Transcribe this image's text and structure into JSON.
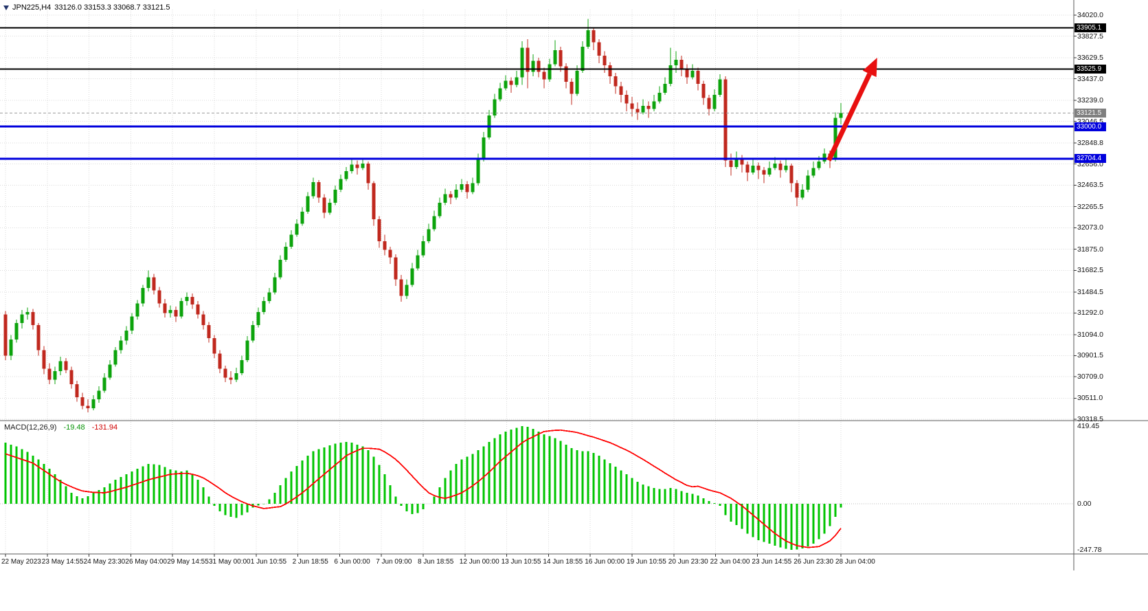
{
  "header": {
    "symbol_period": "JPN225,H4",
    "ohlc": "33126.0 33153.3 33068.7 33121.5"
  },
  "macd_panel": {
    "label": "MACD(12,26,9)",
    "macd_value": "-19.48",
    "signal_value": "-131.94",
    "axis": {
      "max": "419.45",
      "zero": "0.00",
      "min": "-247.78"
    }
  },
  "price_axis": {
    "ticks": [
      "34020.0",
      "33827.5",
      "33629.5",
      "33437.0",
      "33239.0",
      "33046.5",
      "32848.8",
      "32656.0",
      "32463.5",
      "32265.5",
      "32073.0",
      "31875.0",
      "31682.5",
      "31484.5",
      "31292.0",
      "31094.0",
      "30901.5",
      "30709.0",
      "30511.0",
      "30318.5"
    ],
    "tags": [
      {
        "value": "33905.1",
        "price": 33905.1,
        "bg": "#000000",
        "type": "resistance-upper"
      },
      {
        "value": "33525.9",
        "price": 33525.9,
        "bg": "#000000",
        "type": "resistance-lower"
      },
      {
        "value": "33121.5",
        "price": 33121.5,
        "bg": "#7f7f7f",
        "type": "current-price"
      },
      {
        "value": "33000.0",
        "price": 33000.0,
        "bg": "#0000dd",
        "type": "support-upper"
      },
      {
        "value": "32704.4",
        "price": 32704.4,
        "bg": "#0000dd",
        "type": "support-lower"
      }
    ]
  },
  "time_axis": {
    "labels": [
      "22 May 2023",
      "23 May 14:55",
      "24 May 23:30",
      "26 May 04:00",
      "29 May 14:55",
      "31 May 00:00",
      "1 Jun 10:55",
      "2 Jun 18:55",
      "6 Jun 00:00",
      "7 Jun 09:00",
      "8 Jun 18:55",
      "12 Jun 00:00",
      "13 Jun 10:55",
      "14 Jun 18:55",
      "16 Jun 00:00",
      "19 Jun 10:55",
      "20 Jun 23:30",
      "22 Jun 04:00",
      "23 Jun 14:55",
      "26 Jun 23:30",
      "28 Jun 04:00"
    ]
  },
  "chart_data": {
    "type": "candlestick+macd",
    "symbol": "JPN225",
    "timeframe": "H4",
    "title": "JPN225,H4 33126.0 33153.3 33068.7 33121.5",
    "price_range": [
      30318.5,
      34020.0
    ],
    "macd_range": [
      -247.78,
      419.45
    ],
    "current_price": 33121.5,
    "grid": true,
    "colors": {
      "up": "#0ca30c",
      "down": "#c0281e",
      "macd": "#00c400",
      "signal": "#ff0000",
      "grid": "#d9d9d9",
      "arrow": "#e81010"
    },
    "hlines": [
      {
        "price": 33905.1,
        "color": "#000000",
        "width": 2
      },
      {
        "price": 33525.9,
        "color": "#000000",
        "width": 2
      },
      {
        "price": 33000.0,
        "color": "#0000dd",
        "width": 3
      },
      {
        "price": 32704.4,
        "color": "#0000dd",
        "width": 3
      }
    ],
    "arrow": {
      "from": {
        "index": 149.8,
        "price": 32690
      },
      "to": {
        "index": 158.6,
        "price": 33630
      },
      "note": "red-up-trend-arrow"
    },
    "candles": [
      [
        31280,
        31310,
        30860,
        30900
      ],
      [
        30900,
        31090,
        30860,
        31050
      ],
      [
        31050,
        31230,
        31020,
        31200
      ],
      [
        31200,
        31320,
        31150,
        31280
      ],
      [
        31280,
        31340,
        31230,
        31300
      ],
      [
        31300,
        31330,
        31140,
        31180
      ],
      [
        31180,
        31200,
        30900,
        30950
      ],
      [
        30950,
        30990,
        30730,
        30780
      ],
      [
        30780,
        30830,
        30640,
        30680
      ],
      [
        30680,
        30800,
        30640,
        30760
      ],
      [
        30760,
        30890,
        30720,
        30850
      ],
      [
        30850,
        30880,
        30740,
        30770
      ],
      [
        30770,
        30800,
        30600,
        30640
      ],
      [
        30640,
        30670,
        30480,
        30520
      ],
      [
        30520,
        30560,
        30410,
        30440
      ],
      [
        30440,
        30500,
        30380,
        30420
      ],
      [
        30420,
        30540,
        30400,
        30500
      ],
      [
        30500,
        30620,
        30470,
        30580
      ],
      [
        30580,
        30740,
        30560,
        30700
      ],
      [
        30700,
        30860,
        30680,
        30820
      ],
      [
        30820,
        30980,
        30800,
        30950
      ],
      [
        30950,
        31080,
        30920,
        31040
      ],
      [
        31040,
        31170,
        31000,
        31130
      ],
      [
        31130,
        31290,
        31100,
        31260
      ],
      [
        31260,
        31410,
        31230,
        31380
      ],
      [
        31380,
        31550,
        31350,
        31520
      ],
      [
        31520,
        31680,
        31490,
        31620
      ],
      [
        31620,
        31650,
        31460,
        31500
      ],
      [
        31500,
        31530,
        31340,
        31380
      ],
      [
        31380,
        31420,
        31250,
        31290
      ],
      [
        31290,
        31360,
        31250,
        31320
      ],
      [
        31320,
        31350,
        31210,
        31260
      ],
      [
        31260,
        31430,
        31240,
        31400
      ],
      [
        31400,
        31480,
        31360,
        31440
      ],
      [
        31440,
        31470,
        31330,
        31370
      ],
      [
        31370,
        31400,
        31240,
        31280
      ],
      [
        31280,
        31310,
        31140,
        31180
      ],
      [
        31180,
        31210,
        31020,
        31060
      ],
      [
        31060,
        31090,
        30880,
        30920
      ],
      [
        30920,
        30950,
        30740,
        30780
      ],
      [
        30780,
        30810,
        30660,
        30700
      ],
      [
        30700,
        30760,
        30640,
        30680
      ],
      [
        30680,
        30790,
        30660,
        30740
      ],
      [
        30740,
        30900,
        30720,
        30860
      ],
      [
        30860,
        31080,
        30840,
        31040
      ],
      [
        31040,
        31220,
        31020,
        31180
      ],
      [
        31180,
        31340,
        31160,
        31300
      ],
      [
        31300,
        31440,
        31280,
        31400
      ],
      [
        31400,
        31520,
        31380,
        31480
      ],
      [
        31480,
        31660,
        31460,
        31620
      ],
      [
        31620,
        31820,
        31600,
        31780
      ],
      [
        31780,
        31940,
        31760,
        31900
      ],
      [
        31900,
        32050,
        31880,
        32010
      ],
      [
        32010,
        32150,
        31990,
        32110
      ],
      [
        32110,
        32260,
        32090,
        32220
      ],
      [
        32220,
        32400,
        32200,
        32360
      ],
      [
        32360,
        32530,
        32340,
        32490
      ],
      [
        32490,
        32510,
        32300,
        32350
      ],
      [
        32350,
        32380,
        32160,
        32210
      ],
      [
        32210,
        32340,
        32190,
        32300
      ],
      [
        32300,
        32460,
        32280,
        32420
      ],
      [
        32420,
        32560,
        32400,
        32520
      ],
      [
        32520,
        32630,
        32500,
        32590
      ],
      [
        32590,
        32700,
        32570,
        32650
      ],
      [
        32650,
        32690,
        32560,
        32620
      ],
      [
        32620,
        32700,
        32600,
        32660
      ],
      [
        32660,
        32680,
        32420,
        32480
      ],
      [
        32480,
        32500,
        32090,
        32150
      ],
      [
        32150,
        32180,
        31890,
        31950
      ],
      [
        31950,
        32010,
        31820,
        31870
      ],
      [
        31870,
        31900,
        31740,
        31800
      ],
      [
        31800,
        31830,
        31540,
        31600
      ],
      [
        31600,
        31640,
        31395,
        31450
      ],
      [
        31450,
        31600,
        31420,
        31550
      ],
      [
        31550,
        31750,
        31530,
        31700
      ],
      [
        31700,
        31870,
        31680,
        31820
      ],
      [
        31820,
        32000,
        31800,
        31950
      ],
      [
        31950,
        32110,
        31930,
        32060
      ],
      [
        32060,
        32230,
        32040,
        32180
      ],
      [
        32180,
        32350,
        32160,
        32300
      ],
      [
        32300,
        32430,
        32280,
        32380
      ],
      [
        32380,
        32410,
        32290,
        32350
      ],
      [
        32350,
        32470,
        32330,
        32420
      ],
      [
        32420,
        32520,
        32400,
        32470
      ],
      [
        32470,
        32500,
        32340,
        32400
      ],
      [
        32400,
        32530,
        32380,
        32480
      ],
      [
        32480,
        32750,
        32460,
        32700
      ],
      [
        32700,
        32950,
        32680,
        32900
      ],
      [
        32900,
        33150,
        32880,
        33100
      ],
      [
        33100,
        33300,
        33080,
        33250
      ],
      [
        33250,
        33400,
        33230,
        33350
      ],
      [
        33350,
        33470,
        33330,
        33420
      ],
      [
        33420,
        33450,
        33310,
        33380
      ],
      [
        33380,
        33510,
        33360,
        33450
      ],
      [
        33450,
        33780,
        33380,
        33720
      ],
      [
        33720,
        33800,
        33350,
        33500
      ],
      [
        33500,
        33660,
        33460,
        33600
      ],
      [
        33600,
        33630,
        33450,
        33500
      ],
      [
        33500,
        33540,
        33350,
        33430
      ],
      [
        33430,
        33620,
        33410,
        33570
      ],
      [
        33570,
        33790,
        33550,
        33700
      ],
      [
        33700,
        33730,
        33500,
        33550
      ],
      [
        33550,
        33580,
        33350,
        33410
      ],
      [
        33410,
        33440,
        33200,
        33300
      ],
      [
        33300,
        33560,
        33280,
        33510
      ],
      [
        33510,
        33780,
        33490,
        33730
      ],
      [
        33730,
        33985,
        33710,
        33880
      ],
      [
        33880,
        33910,
        33700,
        33770
      ],
      [
        33770,
        33800,
        33580,
        33650
      ],
      [
        33650,
        33690,
        33490,
        33560
      ],
      [
        33560,
        33590,
        33390,
        33460
      ],
      [
        33460,
        33490,
        33300,
        33370
      ],
      [
        33370,
        33410,
        33220,
        33290
      ],
      [
        33290,
        33330,
        33140,
        33210
      ],
      [
        33210,
        33270,
        33090,
        33160
      ],
      [
        33160,
        33220,
        33060,
        33130
      ],
      [
        33130,
        33250,
        33110,
        33190
      ],
      [
        33190,
        33230,
        33080,
        33160
      ],
      [
        33160,
        33290,
        33140,
        33230
      ],
      [
        33230,
        33370,
        33210,
        33310
      ],
      [
        33310,
        33450,
        33290,
        33390
      ],
      [
        33390,
        33720,
        33370,
        33560
      ],
      [
        33560,
        33690,
        33490,
        33610
      ],
      [
        33610,
        33650,
        33460,
        33530
      ],
      [
        33530,
        33570,
        33390,
        33450
      ],
      [
        33450,
        33570,
        33430,
        33510
      ],
      [
        33510,
        33540,
        33330,
        33390
      ],
      [
        33390,
        33420,
        33200,
        33260
      ],
      [
        33260,
        33290,
        33100,
        33160
      ],
      [
        33160,
        33340,
        33140,
        33290
      ],
      [
        33290,
        33480,
        33270,
        33430
      ],
      [
        33430,
        33460,
        32630,
        32690
      ],
      [
        32690,
        32750,
        32550,
        32630
      ],
      [
        32630,
        32770,
        32610,
        32710
      ],
      [
        32710,
        32740,
        32580,
        32650
      ],
      [
        32650,
        32680,
        32500,
        32580
      ],
      [
        32580,
        32700,
        32560,
        32640
      ],
      [
        32640,
        32670,
        32520,
        32600
      ],
      [
        32600,
        32630,
        32480,
        32560
      ],
      [
        32560,
        32680,
        32540,
        32620
      ],
      [
        32620,
        32720,
        32600,
        32660
      ],
      [
        32660,
        32690,
        32530,
        32600
      ],
      [
        32600,
        32700,
        32580,
        32640
      ],
      [
        32640,
        32660,
        32400,
        32480
      ],
      [
        32480,
        32510,
        32270,
        32350
      ],
      [
        32350,
        32470,
        32330,
        32420
      ],
      [
        32420,
        32600,
        32400,
        32550
      ],
      [
        32550,
        32680,
        32530,
        32620
      ],
      [
        32620,
        32730,
        32600,
        32680
      ],
      [
        32680,
        32800,
        32660,
        32750
      ],
      [
        32750,
        32780,
        32620,
        32700
      ],
      [
        32700,
        33130,
        32680,
        33080
      ],
      [
        33080,
        33215,
        33020,
        33121.5
      ]
    ],
    "macd_histogram": [
      330,
      320,
      310,
      295,
      280,
      260,
      240,
      215,
      190,
      160,
      130,
      95,
      60,
      42,
      30,
      42,
      60,
      75,
      90,
      110,
      130,
      145,
      160,
      175,
      190,
      203,
      215,
      213,
      210,
      198,
      185,
      180,
      175,
      180,
      160,
      130,
      90,
      40,
      -10,
      -40,
      -60,
      -70,
      -75,
      -60,
      -45,
      -20,
      -8,
      -2,
      25,
      60,
      100,
      140,
      175,
      205,
      235,
      260,
      285,
      295,
      305,
      315,
      325,
      330,
      335,
      330,
      320,
      310,
      290,
      255,
      210,
      160,
      100,
      40,
      -10,
      -40,
      -55,
      -50,
      -30,
      0,
      40,
      90,
      140,
      180,
      215,
      240,
      255,
      270,
      290,
      310,
      335,
      355,
      375,
      390,
      400,
      410,
      419,
      415,
      405,
      390,
      375,
      365,
      355,
      340,
      320,
      300,
      290,
      285,
      285,
      275,
      260,
      240,
      220,
      200,
      180,
      160,
      140,
      120,
      105,
      95,
      85,
      80,
      80,
      85,
      80,
      70,
      60,
      55,
      45,
      30,
      15,
      5,
      -10,
      -60,
      -95,
      -115,
      -135,
      -160,
      -180,
      -195,
      -205,
      -215,
      -225,
      -235,
      -242,
      -247,
      -245,
      -240,
      -230,
      -215,
      -190,
      -160,
      -120,
      -70,
      -19.48
    ],
    "macd_signal": [
      270,
      260,
      250,
      240,
      230,
      220,
      200,
      180,
      160,
      140,
      120,
      105,
      92,
      80,
      70,
      66,
      62,
      61,
      60,
      66,
      74,
      82,
      90,
      100,
      110,
      120,
      130,
      138,
      145,
      152,
      160,
      162,
      164,
      165,
      160,
      152,
      140,
      122,
      102,
      82,
      60,
      42,
      26,
      12,
      0,
      -10,
      -18,
      -25,
      -22,
      -18,
      -15,
      0,
      18,
      38,
      60,
      84,
      110,
      135,
      160,
      185,
      210,
      235,
      260,
      275,
      288,
      300,
      300,
      298,
      295,
      280,
      262,
      240,
      212,
      182,
      150,
      118,
      88,
      60,
      45,
      35,
      30,
      38,
      48,
      60,
      78,
      98,
      120,
      145,
      172,
      200,
      230,
      255,
      280,
      305,
      330,
      348,
      362,
      377,
      390,
      394,
      397,
      398,
      394,
      390,
      385,
      377,
      368,
      360,
      350,
      340,
      330,
      317,
      303,
      290,
      274,
      257,
      240,
      222,
      203,
      185,
      166,
      148,
      130,
      115,
      100,
      92,
      95,
      85,
      75,
      67,
      60,
      45,
      30,
      10,
      -10,
      -35,
      -60,
      -85,
      -110,
      -135,
      -160,
      -180,
      -200,
      -213,
      -225,
      -230,
      -235,
      -233,
      -230,
      -215,
      -200,
      -170,
      -131.94
    ]
  }
}
